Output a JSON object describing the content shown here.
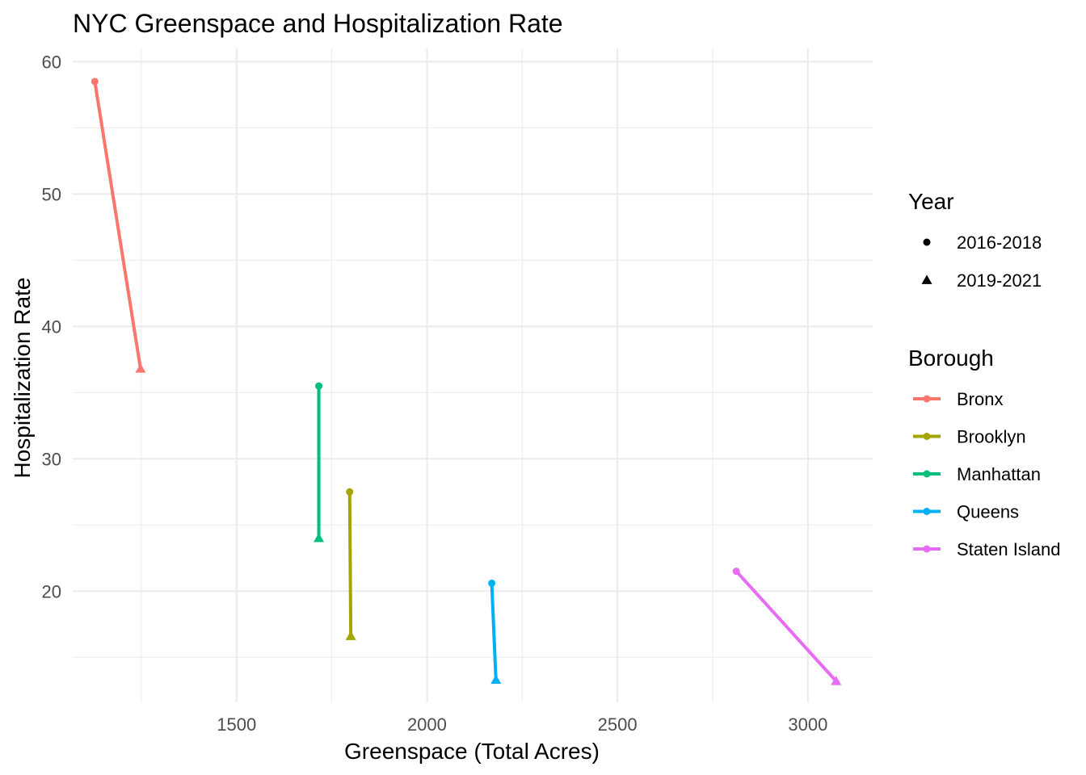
{
  "chart_data": {
    "type": "line",
    "title": "NYC Greenspace and Hospitalization Rate",
    "xlabel": "Greenspace (Total Acres)",
    "ylabel": "Hospitalization Rate",
    "xlim": [
      1070,
      3170
    ],
    "ylim": [
      11.6,
      61.0
    ],
    "x_ticks": [
      1500,
      2000,
      2500,
      3000
    ],
    "x_minor_ticks": [
      1250,
      1750,
      2250,
      2750
    ],
    "y_ticks": [
      20,
      30,
      40,
      50,
      60
    ],
    "y_minor_ticks": [
      15,
      25,
      35,
      45,
      55
    ],
    "grid": true,
    "legend_position": "right",
    "shape_legend": {
      "title": "Year",
      "entries": [
        {
          "label": "2016-2018",
          "shape": "circle"
        },
        {
          "label": "2019-2021",
          "shape": "triangle"
        }
      ]
    },
    "color_legend": {
      "title": "Borough",
      "entries": [
        {
          "label": "Bronx",
          "color": "#F8766D"
        },
        {
          "label": "Brooklyn",
          "color": "#A3A500"
        },
        {
          "label": "Manhattan",
          "color": "#00BF7D"
        },
        {
          "label": "Queens",
          "color": "#00B0F6"
        },
        {
          "label": "Staten Island",
          "color": "#E76BF3"
        }
      ]
    },
    "series": [
      {
        "name": "Bronx",
        "color": "#F8766D",
        "points": [
          {
            "year": "2016-2018",
            "x": 1128,
            "y": 58.5
          },
          {
            "year": "2019-2021",
            "x": 1248,
            "y": 36.8
          }
        ]
      },
      {
        "name": "Brooklyn",
        "color": "#A3A500",
        "points": [
          {
            "year": "2016-2018",
            "x": 1797,
            "y": 27.5
          },
          {
            "year": "2019-2021",
            "x": 1800,
            "y": 16.6
          }
        ]
      },
      {
        "name": "Manhattan",
        "color": "#00BF7D",
        "points": [
          {
            "year": "2016-2018",
            "x": 1716,
            "y": 35.5
          },
          {
            "year": "2019-2021",
            "x": 1716,
            "y": 24.0
          }
        ]
      },
      {
        "name": "Queens",
        "color": "#00B0F6",
        "points": [
          {
            "year": "2016-2018",
            "x": 2170,
            "y": 20.6
          },
          {
            "year": "2019-2021",
            "x": 2181,
            "y": 13.3
          }
        ]
      },
      {
        "name": "Staten Island",
        "color": "#E76BF3",
        "points": [
          {
            "year": "2016-2018",
            "x": 2812,
            "y": 21.5
          },
          {
            "year": "2019-2021",
            "x": 3074,
            "y": 13.2
          }
        ]
      }
    ]
  }
}
